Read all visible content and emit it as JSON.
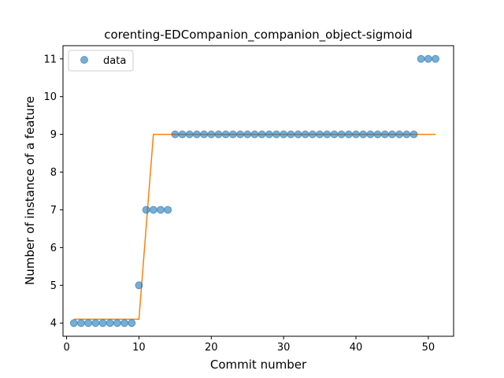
{
  "chart_data": {
    "type": "scatter",
    "title": "corenting-EDCompanion_companion_object-sigmoid",
    "xlabel": "Commit number",
    "ylabel": "Number of instance of a feature",
    "xlim": [
      -0.5,
      53.5
    ],
    "ylim": [
      3.65,
      11.35
    ],
    "xticks": [
      0,
      10,
      20,
      30,
      40,
      50
    ],
    "yticks": [
      4,
      5,
      6,
      7,
      8,
      9,
      10,
      11
    ],
    "grid": false,
    "legend": {
      "placement": "top-left",
      "entries": [
        "data"
      ]
    },
    "series": [
      {
        "name": "data",
        "kind": "scatter",
        "color": "#1f77b4",
        "x": [
          1,
          2,
          3,
          4,
          5,
          6,
          7,
          8,
          9,
          10,
          11,
          12,
          13,
          14,
          15,
          16,
          17,
          18,
          19,
          20,
          21,
          22,
          23,
          24,
          25,
          26,
          27,
          28,
          29,
          30,
          31,
          32,
          33,
          34,
          35,
          36,
          37,
          38,
          39,
          40,
          41,
          42,
          43,
          44,
          45,
          46,
          47,
          48,
          49,
          50,
          51
        ],
        "y": [
          4,
          4,
          4,
          4,
          4,
          4,
          4,
          4,
          4,
          5,
          7,
          7,
          7,
          7,
          9,
          9,
          9,
          9,
          9,
          9,
          9,
          9,
          9,
          9,
          9,
          9,
          9,
          9,
          9,
          9,
          9,
          9,
          9,
          9,
          9,
          9,
          9,
          9,
          9,
          9,
          9,
          9,
          9,
          9,
          9,
          9,
          9,
          9,
          11,
          11,
          11
        ]
      },
      {
        "kind": "line",
        "color": "#ff7f0e",
        "x": [
          1,
          10,
          12,
          51
        ],
        "y": [
          4.1,
          4.1,
          9.0,
          9.0
        ]
      }
    ]
  }
}
